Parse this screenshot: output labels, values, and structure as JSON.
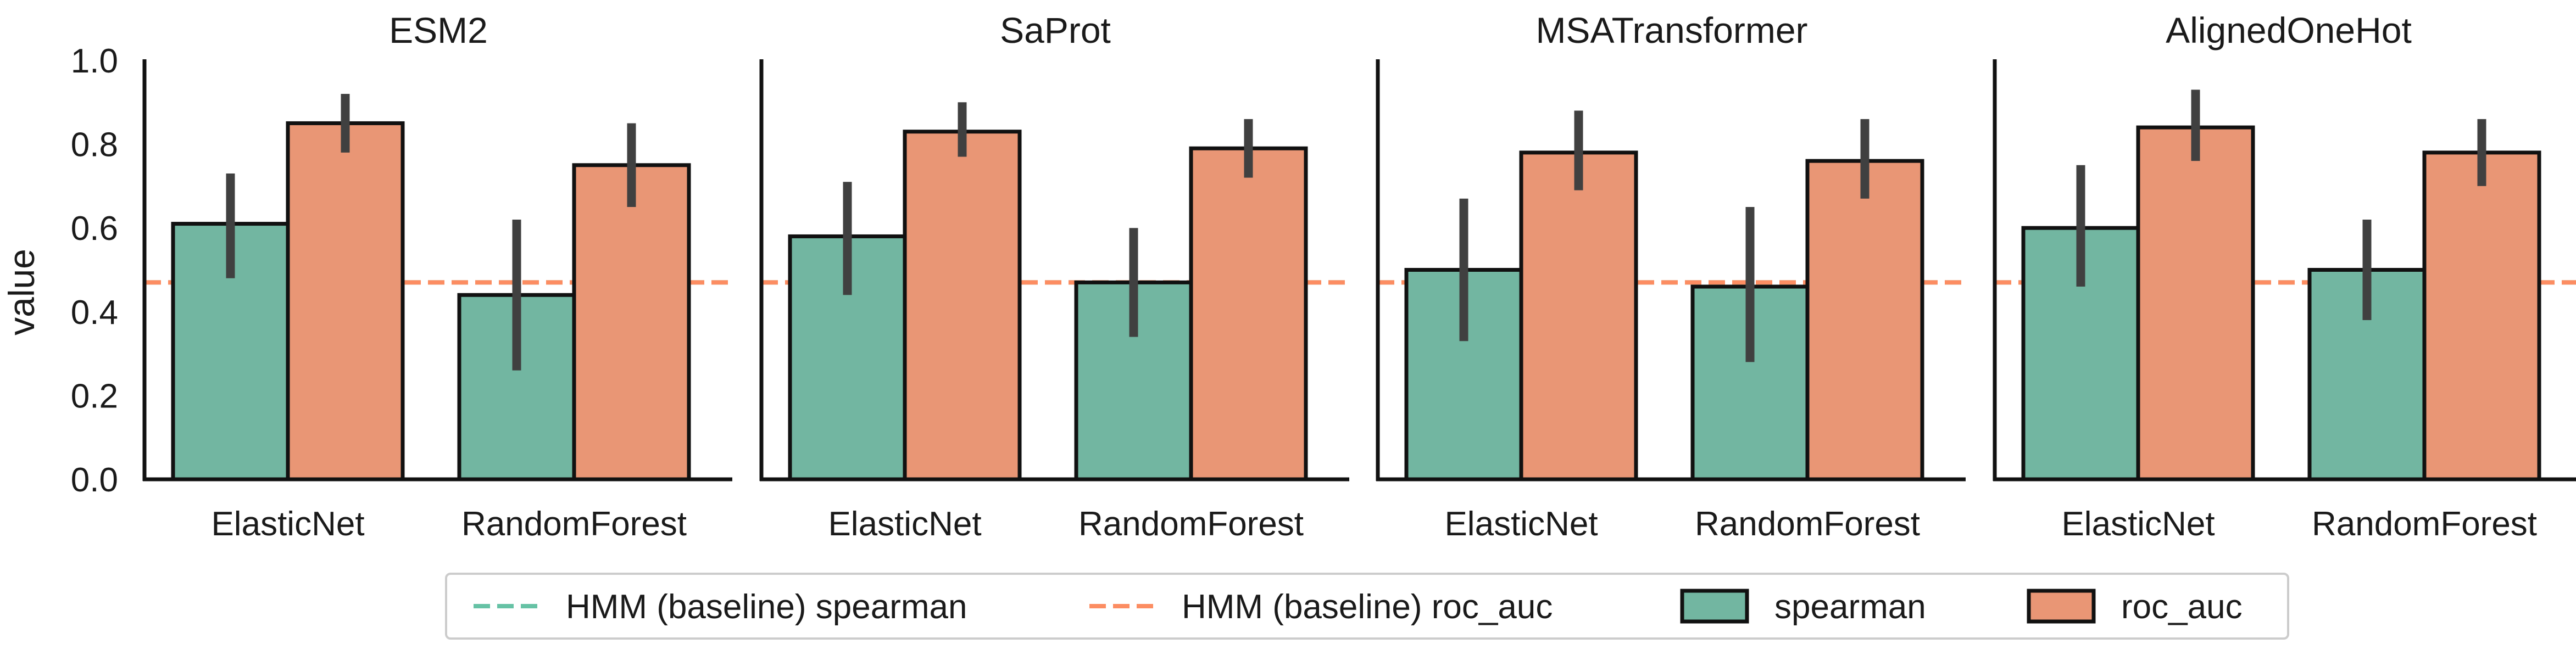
{
  "chart_data": {
    "type": "bar",
    "ylabel": "value",
    "ylim": [
      0,
      1.0
    ],
    "yticks": [
      "0.0",
      "0.2",
      "0.4",
      "0.6",
      "0.8",
      "1.0"
    ],
    "categories": [
      "ElasticNet",
      "RandomForest"
    ],
    "colors": {
      "spearman": "#72b6a1",
      "roc_auc": "#e99675",
      "baseline_spearman": "#66c2a5",
      "baseline_roc_auc": "#fc8d62",
      "errorbar": "#404040"
    },
    "baseline": {
      "spearman": 0.47,
      "roc_auc": 0.47
    },
    "panels": [
      {
        "title": "ESM2",
        "series": [
          {
            "name": "spearman",
            "values": [
              0.61,
              0.44
            ],
            "err_low": [
              0.48,
              0.26
            ],
            "err_high": [
              0.73,
              0.62
            ]
          },
          {
            "name": "roc_auc",
            "values": [
              0.85,
              0.75
            ],
            "err_low": [
              0.78,
              0.65
            ],
            "err_high": [
              0.92,
              0.85
            ]
          }
        ]
      },
      {
        "title": "SaProt",
        "series": [
          {
            "name": "spearman",
            "values": [
              0.58,
              0.47
            ],
            "err_low": [
              0.44,
              0.34
            ],
            "err_high": [
              0.71,
              0.6
            ]
          },
          {
            "name": "roc_auc",
            "values": [
              0.83,
              0.79
            ],
            "err_low": [
              0.77,
              0.72
            ],
            "err_high": [
              0.9,
              0.86
            ]
          }
        ]
      },
      {
        "title": "MSATransformer",
        "series": [
          {
            "name": "spearman",
            "values": [
              0.5,
              0.46
            ],
            "err_low": [
              0.33,
              0.28
            ],
            "err_high": [
              0.67,
              0.65
            ]
          },
          {
            "name": "roc_auc",
            "values": [
              0.78,
              0.76
            ],
            "err_low": [
              0.69,
              0.67
            ],
            "err_high": [
              0.88,
              0.86
            ]
          }
        ]
      },
      {
        "title": "AlignedOneHot",
        "series": [
          {
            "name": "spearman",
            "values": [
              0.6,
              0.5
            ],
            "err_low": [
              0.46,
              0.38
            ],
            "err_high": [
              0.75,
              0.62
            ]
          },
          {
            "name": "roc_auc",
            "values": [
              0.84,
              0.78
            ],
            "err_low": [
              0.76,
              0.7
            ],
            "err_high": [
              0.93,
              0.86
            ]
          }
        ]
      }
    ],
    "legend": {
      "placement": "bottom-center",
      "entries": [
        {
          "label": "HMM (baseline) spearman",
          "kind": "dashed-line",
          "key": "baseline_spearman"
        },
        {
          "label": "HMM (baseline) roc_auc",
          "kind": "dashed-line",
          "key": "baseline_roc_auc"
        },
        {
          "label": "spearman",
          "kind": "patch",
          "key": "spearman"
        },
        {
          "label": "roc_auc",
          "kind": "patch",
          "key": "roc_auc"
        }
      ]
    }
  }
}
